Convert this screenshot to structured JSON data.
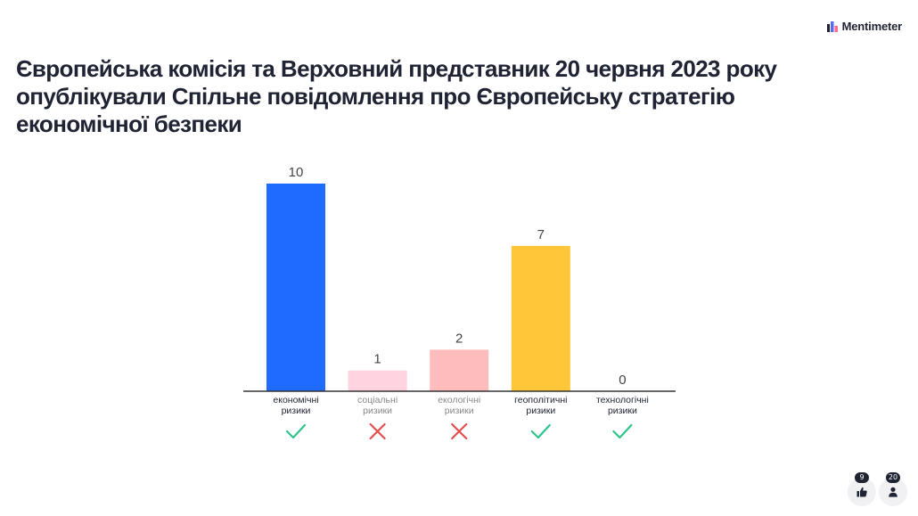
{
  "brand": {
    "name": "Mentimeter",
    "logo_icon": "mentimeter-logo-icon"
  },
  "question": {
    "title": "Європейська комісія та Верховний представник 20 червня 2023 року опублікували Спільне повідомлення про Європейську стратегію економічної безпеки"
  },
  "chart_data": {
    "type": "bar",
    "categories": [
      [
        "економічні",
        "ризики"
      ],
      [
        "соціальні",
        "ризики"
      ],
      [
        "екологічні",
        "ризики"
      ],
      [
        "геополітичні",
        "ризики"
      ],
      [
        "технологічні",
        "ризики"
      ]
    ],
    "values": [
      10,
      1,
      2,
      7,
      0
    ],
    "colors": [
      "#1f6bff",
      "#ffd3df",
      "#ffbcbc",
      "#ffc63a",
      "#6b6b6b"
    ],
    "label_colors": [
      "#1f2333",
      "#888888",
      "#888888",
      "#1f2333",
      "#1f2333"
    ],
    "correct": [
      true,
      false,
      false,
      true,
      true
    ],
    "title": "",
    "xlabel": "",
    "ylabel": "",
    "ylim": [
      0,
      10
    ],
    "grid": false,
    "legend": "none"
  },
  "marks": {
    "correct_icon": "check-icon",
    "incorrect_icon": "cross-icon",
    "correct_color": "#2ec48a",
    "incorrect_color": "#e1504f"
  },
  "footer": {
    "reactions": {
      "count": "9",
      "icon": "thumbs-up-icon"
    },
    "participants": {
      "count": "20",
      "icon": "person-icon"
    }
  }
}
